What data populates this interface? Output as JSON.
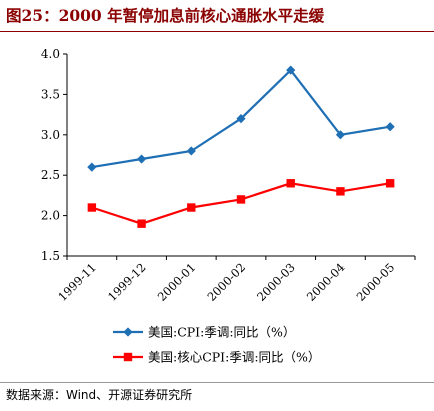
{
  "figure": {
    "title": "图25：2000 年暂停加息前核心通胀水平走缓",
    "source": "数据来源：Wind、开源证券研究所"
  },
  "chart_data": {
    "type": "line",
    "categories": [
      "1999-11",
      "1999-12",
      "2000-01",
      "2000-02",
      "2000-03",
      "2000-04",
      "2000-05"
    ],
    "series": [
      {
        "name": "美国:CPI:季调:同比（%）",
        "values": [
          2.6,
          2.7,
          2.8,
          3.2,
          3.8,
          3.0,
          3.1
        ],
        "color": "#1f6fb5",
        "marker": "diamond"
      },
      {
        "name": "美国:核心CPI:季调:同比（%）",
        "values": [
          2.1,
          1.9,
          2.1,
          2.2,
          2.4,
          2.3,
          2.4
        ],
        "color": "#ff0000",
        "marker": "square"
      }
    ],
    "yticks": [
      "1.5",
      "2.0",
      "2.5",
      "3.0",
      "3.5",
      "4.0"
    ],
    "ylim": [
      1.5,
      4.0
    ],
    "xlabel": "",
    "ylabel": "",
    "grid": false,
    "legend": "bottom"
  }
}
